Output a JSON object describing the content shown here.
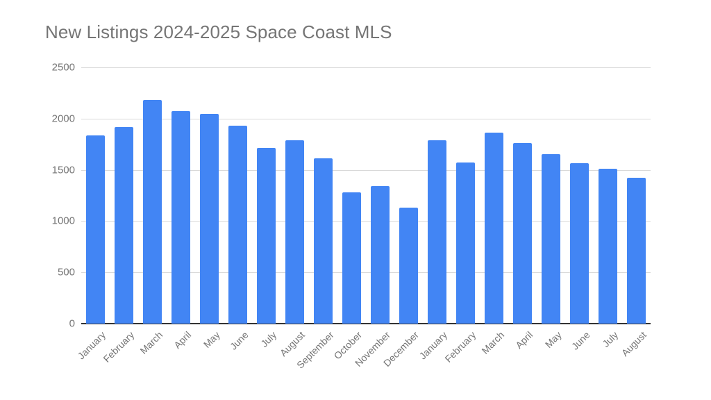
{
  "chart_data": {
    "type": "bar",
    "title": "New Listings 2024-2025 Space Coast MLS",
    "xlabel": "",
    "ylabel": "",
    "ylim": [
      0,
      2500
    ],
    "yticks": [
      0,
      500,
      1000,
      1500,
      2000,
      2500
    ],
    "grid": true,
    "legend": "none",
    "bar_color": "#4285f4",
    "categories": [
      "January",
      "February",
      "March",
      "April",
      "May",
      "June",
      "July",
      "August",
      "September",
      "October",
      "November",
      "December",
      "January",
      "February",
      "March",
      "April",
      "May",
      "June",
      "July",
      "August"
    ],
    "values": [
      1834,
      1917,
      2179,
      2074,
      2043,
      1928,
      1717,
      1791,
      1613,
      1279,
      1341,
      1132,
      1791,
      1569,
      1865,
      1759,
      1654,
      1562,
      1510,
      1424
    ]
  }
}
